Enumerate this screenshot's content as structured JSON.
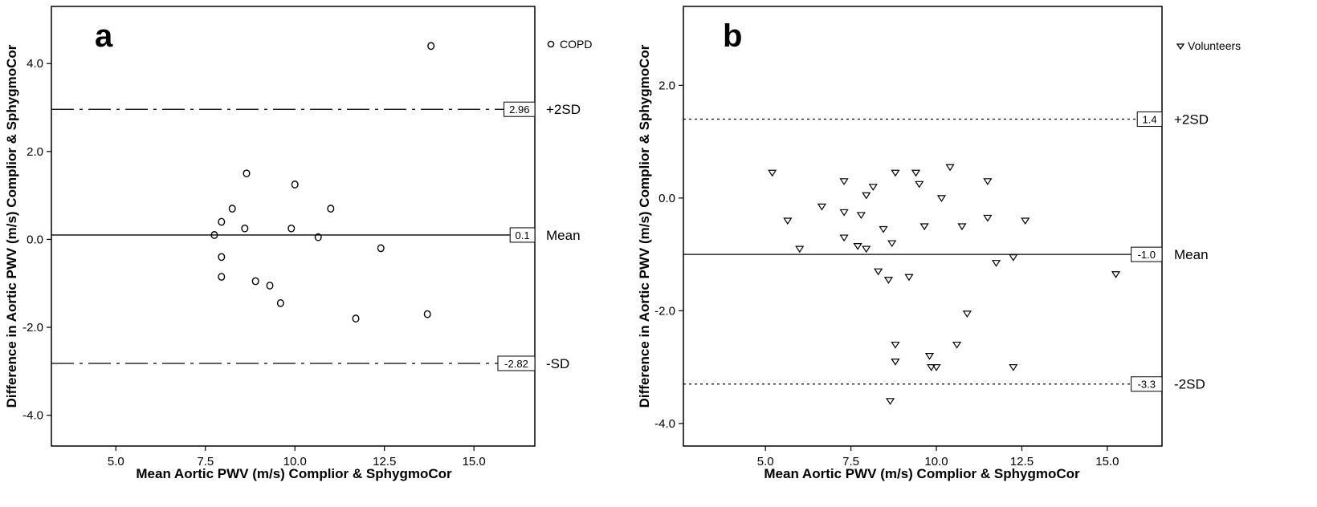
{
  "chart_data": [
    {
      "type": "scatter",
      "panel_label": "a",
      "xlabel": "Mean Aortic PWV (m/s) Complior & SphygmoCor",
      "ylabel": "Difference in Aortic PWV (m/s) Complior & SphygmoCor",
      "xlim": [
        3.2,
        16.7
      ],
      "ylim": [
        -4.7,
        5.3
      ],
      "x_ticks": [
        5.0,
        7.5,
        10.0,
        12.5,
        15.0
      ],
      "x_tick_labels": [
        "5.0",
        "7.5",
        "10.0",
        "12.5",
        "15.0"
      ],
      "y_ticks": [
        4.0,
        2.0,
        0.0,
        -2.0,
        -4.0
      ],
      "y_tick_labels": [
        "4.0",
        "2.0",
        "0.0",
        "-2.0",
        "-4.0"
      ],
      "grid": false,
      "legend": {
        "position": "top-right",
        "marker": "circle"
      },
      "series": [
        {
          "name": "COPD",
          "marker": "circle",
          "points": [
            [
              13.8,
              4.4
            ],
            [
              8.65,
              1.5
            ],
            [
              10.0,
              1.25
            ],
            [
              8.25,
              0.7
            ],
            [
              11.0,
              0.7
            ],
            [
              7.95,
              0.4
            ],
            [
              8.6,
              0.25
            ],
            [
              9.9,
              0.25
            ],
            [
              7.75,
              0.1
            ],
            [
              10.65,
              0.05
            ],
            [
              12.4,
              -0.2
            ],
            [
              7.95,
              -0.4
            ],
            [
              7.95,
              -0.85
            ],
            [
              8.9,
              -0.95
            ],
            [
              9.3,
              -1.05
            ],
            [
              9.6,
              -1.45
            ],
            [
              13.7,
              -1.7
            ],
            [
              11.7,
              -1.8
            ]
          ]
        }
      ],
      "reference_lines": [
        {
          "y": 2.96,
          "label": "+2SD",
          "box_label": "2.96",
          "style": "dashdot"
        },
        {
          "y": 0.1,
          "label": "Mean",
          "box_label": "0.1",
          "style": "solid"
        },
        {
          "y": -2.82,
          "label": "-SD",
          "box_label": "-2.82",
          "style": "dashdot"
        }
      ]
    },
    {
      "type": "scatter",
      "panel_label": "b",
      "xlabel": "Mean Aortic PWV (m/s) Complior & SphygmoCor",
      "ylabel": "Difference in Aortic PWV (m/s) Complior & SphygmoCor",
      "xlim": [
        2.6,
        16.6
      ],
      "ylim": [
        -4.4,
        3.4
      ],
      "x_ticks": [
        5.0,
        7.5,
        10.0,
        12.5,
        15.0
      ],
      "x_tick_labels": [
        "5.0",
        "7.5",
        "10.0",
        "12.5",
        "15.0"
      ],
      "y_ticks": [
        2.0,
        0.0,
        -2.0,
        -4.0
      ],
      "y_tick_labels": [
        "2.0",
        "0.0",
        "-2.0",
        "-4.0"
      ],
      "grid": false,
      "legend": {
        "position": "top-right",
        "marker": "triangle-down"
      },
      "series": [
        {
          "name": "Volunteers",
          "marker": "triangle-down",
          "points": [
            [
              5.2,
              0.45
            ],
            [
              5.65,
              -0.4
            ],
            [
              6.0,
              -0.9
            ],
            [
              6.65,
              -0.15
            ],
            [
              7.3,
              0.3
            ],
            [
              7.3,
              -0.25
            ],
            [
              7.3,
              -0.7
            ],
            [
              7.7,
              -0.85
            ],
            [
              7.8,
              -0.3
            ],
            [
              7.95,
              0.05
            ],
            [
              7.95,
              -0.9
            ],
            [
              8.15,
              0.2
            ],
            [
              8.3,
              -1.3
            ],
            [
              8.45,
              -0.55
            ],
            [
              8.6,
              -1.45
            ],
            [
              8.7,
              -0.8
            ],
            [
              8.8,
              0.45
            ],
            [
              8.8,
              -2.6
            ],
            [
              8.8,
              -2.9
            ],
            [
              9.2,
              -1.4
            ],
            [
              9.4,
              0.45
            ],
            [
              9.5,
              0.25
            ],
            [
              9.65,
              -0.5
            ],
            [
              9.8,
              -2.8
            ],
            [
              9.85,
              -3.0
            ],
            [
              10.0,
              -3.0
            ],
            [
              10.15,
              0.0
            ],
            [
              10.4,
              0.55
            ],
            [
              10.6,
              -2.6
            ],
            [
              10.75,
              -0.5
            ],
            [
              10.9,
              -2.05
            ],
            [
              11.5,
              0.3
            ],
            [
              11.5,
              -0.35
            ],
            [
              11.75,
              -1.15
            ],
            [
              12.25,
              -1.05
            ],
            [
              12.25,
              -3.0
            ],
            [
              12.6,
              -0.4
            ],
            [
              15.25,
              -1.35
            ],
            [
              8.65,
              -3.6
            ]
          ]
        }
      ],
      "reference_lines": [
        {
          "y": 1.4,
          "label": "+2SD",
          "box_label": "1.4",
          "style": "dotted"
        },
        {
          "y": -1.0,
          "label": "Mean",
          "box_label": "-1.0",
          "style": "solid"
        },
        {
          "y": -3.3,
          "label": "-2SD",
          "box_label": "-3.3",
          "style": "dotted"
        }
      ]
    }
  ]
}
